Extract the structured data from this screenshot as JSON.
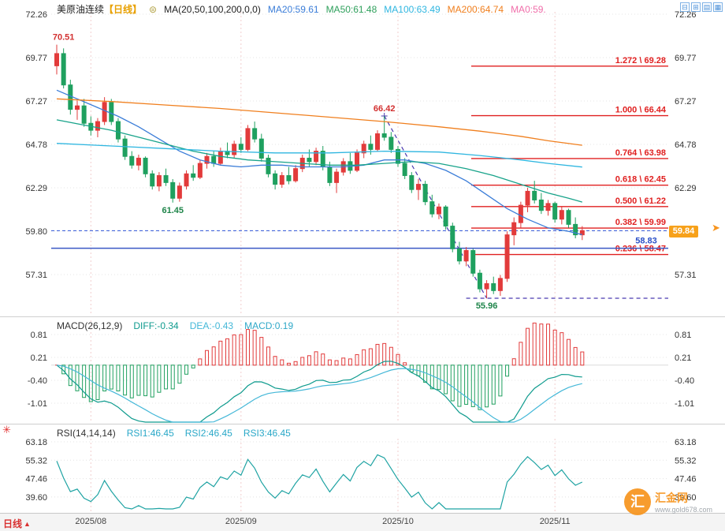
{
  "header": {
    "symbol": "美原油连续",
    "period_tag": "【日线】",
    "settings_icon": "⊜",
    "ma_settings": "MA(20,50,100,200,0,0)",
    "ma_values": [
      {
        "label": "MA20:59.61",
        "color": "#3b7dd8"
      },
      {
        "label": "MA50:61.48",
        "color": "#2fa05c"
      },
      {
        "label": "MA100:63.49",
        "color": "#2fb6e0"
      },
      {
        "label": "MA200:64.74",
        "color": "#f07f1e"
      },
      {
        "label": "MA0:59.",
        "color": "#f06eaa"
      }
    ]
  },
  "toolbar": {
    "icons": [
      {
        "name": "layout-single",
        "glyph": "⊟"
      },
      {
        "name": "layout-split",
        "glyph": "⊞"
      },
      {
        "name": "layout-rows",
        "glyph": "▤"
      },
      {
        "name": "layout-grid",
        "glyph": "▦"
      }
    ]
  },
  "main_chart": {
    "y_axis": [
      "72.26",
      "69.77",
      "67.27",
      "64.78",
      "62.29",
      "59.80",
      "57.31"
    ],
    "current_price": "59.84",
    "edge_arrow": "➤"
  },
  "macd_pane": {
    "title": "MACD(26,12,9)",
    "diff_label": "DIFF:-0.34",
    "dea_label": "DEA:-0.43",
    "macd_label": "MACD:0.19",
    "label_colors": {
      "diff": "#0f9b8e",
      "dea": "#45b8d8",
      "macd": "#2fa8c8"
    },
    "y_axis": [
      "0.81",
      "0.21",
      "-0.40",
      "-1.01"
    ]
  },
  "rsi_pane": {
    "title": "RSI(14,14,14)",
    "rsi1_label": "RSI1:46.45",
    "rsi2_label": "RSI2:46.45",
    "rsi3_label": "RSI3:46.45",
    "label_color": "#2aa8c8",
    "y_axis": [
      "63.18",
      "55.32",
      "47.46",
      "39.60"
    ],
    "star_icon": "✳"
  },
  "bottom": {
    "period_label": "日线",
    "period_arrow": "▲",
    "x_labels": [
      "2025/08",
      "2025/09",
      "2025/10",
      "2025/11"
    ]
  },
  "watermark": {
    "logo_char": "汇",
    "name": "汇金网",
    "url": "www.gold678.com"
  },
  "chart_data": {
    "type": "candlestick",
    "title": "美原油连续 日线",
    "y_range": [
      55.5,
      72.26
    ],
    "colors": {
      "up": "#e23b3b",
      "down": "#1fa05f",
      "fib": "#e02020",
      "current_dash": "#2f54d8",
      "support": "#3a57c4",
      "trend": "#4a3ab0",
      "diff": "#0f9b8e",
      "dea": "#45b8d8",
      "rsi": "#1fa3a3",
      "price_badge": "#f7a11a"
    },
    "candles": [
      [
        69.3,
        70.51,
        68.8,
        70.0
      ],
      [
        70.0,
        70.3,
        68.0,
        68.2
      ],
      [
        68.2,
        68.5,
        66.5,
        66.8
      ],
      [
        66.8,
        67.3,
        66.2,
        67.0
      ],
      [
        67.0,
        67.4,
        65.8,
        66.0
      ],
      [
        66.0,
        66.4,
        65.3,
        65.6
      ],
      [
        65.6,
        66.3,
        65.2,
        66.1
      ],
      [
        66.1,
        67.5,
        65.9,
        67.2
      ],
      [
        67.2,
        67.4,
        65.9,
        66.1
      ],
      [
        66.1,
        66.3,
        64.9,
        65.1
      ],
      [
        65.1,
        65.3,
        63.9,
        64.1
      ],
      [
        64.1,
        64.4,
        63.4,
        63.6
      ],
      [
        63.6,
        64.2,
        63.3,
        64.0
      ],
      [
        64.0,
        64.1,
        62.9,
        63.1
      ],
      [
        63.1,
        63.3,
        62.2,
        62.4
      ],
      [
        62.4,
        63.2,
        62.1,
        63.0
      ],
      [
        63.0,
        63.4,
        62.4,
        62.6
      ],
      [
        62.6,
        62.8,
        61.45,
        61.7
      ],
      [
        61.7,
        62.6,
        61.5,
        62.4
      ],
      [
        62.4,
        63.3,
        62.2,
        63.1
      ],
      [
        63.1,
        63.6,
        62.7,
        62.9
      ],
      [
        62.9,
        63.9,
        62.8,
        63.7
      ],
      [
        63.7,
        64.3,
        63.4,
        64.1
      ],
      [
        64.1,
        64.4,
        63.5,
        63.7
      ],
      [
        63.7,
        64.6,
        63.6,
        64.4
      ],
      [
        64.4,
        64.9,
        64.0,
        64.2
      ],
      [
        64.2,
        65.0,
        64.0,
        64.8
      ],
      [
        64.8,
        65.2,
        64.3,
        64.5
      ],
      [
        64.5,
        65.9,
        64.4,
        65.7
      ],
      [
        65.7,
        66.1,
        64.9,
        65.1
      ],
      [
        65.1,
        65.4,
        63.8,
        64.0
      ],
      [
        64.0,
        64.2,
        62.9,
        63.1
      ],
      [
        63.1,
        63.3,
        62.2,
        62.5
      ],
      [
        62.5,
        63.2,
        62.3,
        63.0
      ],
      [
        63.0,
        63.5,
        62.5,
        62.7
      ],
      [
        62.7,
        63.6,
        62.6,
        63.4
      ],
      [
        63.4,
        64.2,
        63.2,
        64.0
      ],
      [
        64.0,
        64.5,
        63.5,
        63.8
      ],
      [
        63.8,
        64.6,
        63.6,
        64.4
      ],
      [
        64.4,
        64.7,
        63.3,
        63.5
      ],
      [
        63.5,
        63.8,
        62.4,
        62.6
      ],
      [
        62.6,
        63.4,
        62.0,
        63.2
      ],
      [
        63.2,
        64.0,
        63.0,
        63.8
      ],
      [
        63.8,
        64.3,
        63.1,
        63.3
      ],
      [
        63.3,
        64.5,
        63.2,
        64.3
      ],
      [
        64.3,
        65.0,
        64.0,
        64.8
      ],
      [
        64.8,
        65.3,
        64.2,
        64.5
      ],
      [
        64.5,
        65.6,
        64.4,
        65.4
      ],
      [
        65.4,
        66.42,
        65.0,
        65.2
      ],
      [
        65.2,
        65.5,
        64.3,
        64.5
      ],
      [
        64.5,
        64.7,
        63.5,
        63.7
      ],
      [
        63.7,
        64.0,
        62.8,
        63.0
      ],
      [
        63.0,
        63.2,
        62.0,
        62.2
      ],
      [
        62.2,
        62.8,
        61.6,
        62.5
      ],
      [
        62.5,
        62.7,
        61.3,
        61.5
      ],
      [
        61.5,
        61.9,
        60.6,
        60.8
      ],
      [
        60.8,
        61.4,
        60.5,
        61.2
      ],
      [
        61.2,
        61.3,
        59.9,
        60.1
      ],
      [
        60.1,
        60.3,
        58.6,
        58.8
      ],
      [
        58.8,
        59.2,
        57.9,
        58.1
      ],
      [
        58.1,
        58.9,
        57.8,
        58.7
      ],
      [
        58.7,
        58.8,
        57.2,
        57.4
      ],
      [
        57.4,
        57.6,
        56.3,
        56.5
      ],
      [
        56.5,
        57.0,
        55.96,
        56.8
      ],
      [
        56.8,
        57.2,
        56.2,
        56.4
      ],
      [
        56.4,
        57.3,
        56.1,
        57.1
      ],
      [
        57.1,
        59.8,
        56.9,
        59.6
      ],
      [
        59.6,
        60.6,
        59.0,
        60.3
      ],
      [
        60.3,
        61.5,
        60.0,
        61.3
      ],
      [
        61.3,
        62.3,
        60.9,
        62.1
      ],
      [
        62.1,
        62.7,
        61.4,
        61.6
      ],
      [
        61.6,
        62.0,
        60.8,
        61.0
      ],
      [
        61.0,
        61.6,
        60.7,
        61.4
      ],
      [
        61.4,
        61.5,
        60.3,
        60.5
      ],
      [
        60.5,
        61.2,
        60.2,
        61.0
      ],
      [
        61.0,
        61.1,
        60.0,
        60.2
      ],
      [
        60.2,
        60.6,
        59.4,
        59.6
      ],
      [
        59.6,
        60.1,
        59.3,
        59.84
      ]
    ],
    "months": [
      {
        "label": "2025/08",
        "idx": 5
      },
      {
        "label": "2025/09",
        "idx": 27
      },
      {
        "label": "2025/10",
        "idx": 50
      },
      {
        "label": "2025/11",
        "idx": 73
      }
    ],
    "ma_lines": [
      {
        "name": "MA20",
        "color": "#3b7dd8",
        "points": [
          [
            0,
            67.9
          ],
          [
            3,
            67.4
          ],
          [
            6,
            66.9
          ],
          [
            9,
            66.4
          ],
          [
            12,
            65.8
          ],
          [
            15,
            65.1
          ],
          [
            18,
            64.4
          ],
          [
            21,
            63.9
          ],
          [
            24,
            63.6
          ],
          [
            27,
            63.5
          ],
          [
            30,
            63.6
          ],
          [
            33,
            63.6
          ],
          [
            36,
            63.5
          ],
          [
            39,
            63.5
          ],
          [
            42,
            63.5
          ],
          [
            45,
            63.6
          ],
          [
            48,
            63.9
          ],
          [
            51,
            63.9
          ],
          [
            54,
            63.7
          ],
          [
            57,
            63.3
          ],
          [
            60,
            62.7
          ],
          [
            63,
            61.9
          ],
          [
            66,
            61.1
          ],
          [
            69,
            60.5
          ],
          [
            72,
            60.0
          ],
          [
            75,
            59.8
          ],
          [
            77,
            59.61
          ]
        ]
      },
      {
        "name": "MA50",
        "color": "#18a38a",
        "points": [
          [
            0,
            66.2
          ],
          [
            4,
            65.9
          ],
          [
            8,
            65.6
          ],
          [
            12,
            65.2
          ],
          [
            16,
            64.8
          ],
          [
            20,
            64.4
          ],
          [
            24,
            64.1
          ],
          [
            28,
            63.9
          ],
          [
            32,
            63.8
          ],
          [
            36,
            63.7
          ],
          [
            40,
            63.6
          ],
          [
            44,
            63.6
          ],
          [
            48,
            63.7
          ],
          [
            52,
            63.8
          ],
          [
            56,
            63.7
          ],
          [
            60,
            63.4
          ],
          [
            64,
            63.0
          ],
          [
            68,
            62.5
          ],
          [
            72,
            62.0
          ],
          [
            75,
            61.7
          ],
          [
            77,
            61.48
          ]
        ]
      },
      {
        "name": "MA100",
        "color": "#2fb6e0",
        "points": [
          [
            0,
            64.85
          ],
          [
            8,
            64.7
          ],
          [
            16,
            64.55
          ],
          [
            24,
            64.4
          ],
          [
            32,
            64.3
          ],
          [
            40,
            64.3
          ],
          [
            48,
            64.4
          ],
          [
            56,
            64.35
          ],
          [
            62,
            64.15
          ],
          [
            68,
            63.9
          ],
          [
            72,
            63.7
          ],
          [
            77,
            63.49
          ]
        ]
      },
      {
        "name": "MA200",
        "color": "#f07f1e",
        "points": [
          [
            0,
            67.4
          ],
          [
            8,
            67.25
          ],
          [
            16,
            67.05
          ],
          [
            24,
            66.85
          ],
          [
            32,
            66.6
          ],
          [
            40,
            66.35
          ],
          [
            48,
            66.1
          ],
          [
            56,
            65.8
          ],
          [
            62,
            65.55
          ],
          [
            68,
            65.25
          ],
          [
            72,
            65.0
          ],
          [
            77,
            64.74
          ]
        ]
      }
    ],
    "fib_levels": [
      {
        "label": "1.272 \\ 69.28",
        "price": 69.28
      },
      {
        "label": "1.000 \\ 66.44",
        "price": 66.44
      },
      {
        "label": "0.764 \\ 63.98",
        "price": 63.98
      },
      {
        "label": "0.618 \\ 62.45",
        "price": 62.45
      },
      {
        "label": "0.500 \\ 61.22",
        "price": 61.22
      },
      {
        "label": "0.382 \\ 59.99",
        "price": 59.99
      },
      {
        "label": "0.236 \\ 58.47",
        "price": 58.47
      }
    ],
    "current_price_value": 59.84,
    "support_line": 58.83,
    "trend_line": {
      "from": [
        48,
        66.42
      ],
      "to": [
        63,
        55.96
      ]
    },
    "low_dash": {
      "price": 55.96,
      "x_start_idx": 60
    },
    "annotations": [
      {
        "text": "70.51",
        "idx": 1,
        "price": 70.51,
        "pos": "above",
        "color": "#d23030"
      },
      {
        "text": "61.45",
        "idx": 17,
        "price": 61.45,
        "pos": "below",
        "color": "#1e8449"
      },
      {
        "text": "66.42",
        "idx": 48,
        "price": 66.42,
        "pos": "above",
        "color": "#d23030"
      },
      {
        "text": "55.96",
        "idx": 63,
        "price": 55.96,
        "pos": "below",
        "color": "#1e8449"
      },
      {
        "text": "58.83",
        "x": 820,
        "price": 58.83,
        "pos": "above",
        "color": "#2b50c8"
      }
    ],
    "indicators": {
      "macd": {
        "fast": 12,
        "slow": 26,
        "signal": 9
      },
      "rsi_period": 14
    }
  }
}
